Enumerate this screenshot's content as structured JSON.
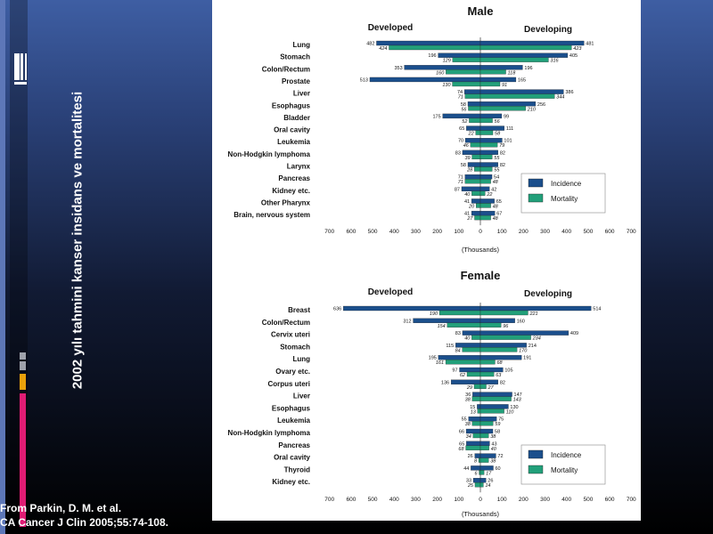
{
  "slide": {
    "vertical_title": "2002 yılı tahmini kanser insidans ve mortalitesi",
    "citation_line_1": "From Parkin, D. M. et al.",
    "citation_line_2": "CA Cancer J Clin 2005;55:74-108."
  },
  "colors": {
    "incidence": "#1b4f8c",
    "mortality": "#22a07a",
    "background_top": "#3e5ea3",
    "background_bottom": "#000000",
    "accent_magenta": "#e01c74",
    "accent_gold": "#e9a10b",
    "accent_grey": "#9fa2ab"
  },
  "chart_data": [
    {
      "type": "bar",
      "title": "Male",
      "left_label": "Developed",
      "right_label": "Developing",
      "xlabel": "(Thousands)",
      "xlim": [
        -700,
        700
      ],
      "tick_labels": [
        "700",
        "600",
        "500",
        "400",
        "300",
        "200",
        "100",
        "0",
        "100",
        "200",
        "300",
        "400",
        "500",
        "600",
        "700"
      ],
      "legend": {
        "position": "right",
        "incidence": "Incidence",
        "mortality": "Mortality"
      },
      "categories": [
        "Lung",
        "Stomach",
        "Colon/Rectum",
        "Prostate",
        "Liver",
        "Esophagus",
        "Bladder",
        "Oral cavity",
        "Leukemia",
        "Non-Hodgkin lymphoma",
        "Larynx",
        "Pancreas",
        "Kidney etc.",
        "Other Pharynx",
        "Brain, nervous system"
      ],
      "series": [
        {
          "name": "Incidence",
          "side": "Developed",
          "values": [
            482,
            196,
            353,
            513,
            74,
            58,
            175,
            65,
            70,
            83,
            58,
            71,
            87,
            41,
            41
          ]
        },
        {
          "name": "Mortality",
          "side": "Developed",
          "values": [
            424,
            129,
            160,
            130,
            71,
            56,
            52,
            22,
            46,
            39,
            28,
            71,
            40,
            20,
            27
          ]
        },
        {
          "name": "Incidence",
          "side": "Developing",
          "values": [
            481,
            405,
            196,
            165,
            386,
            256,
            99,
            111,
            101,
            82,
            82,
            54,
            42,
            65,
            67
          ]
        },
        {
          "name": "Mortality",
          "side": "Developing",
          "values": [
            423,
            316,
            118,
            91,
            344,
            210,
            56,
            58,
            79,
            55,
            55,
            48,
            22,
            48,
            48
          ]
        }
      ]
    },
    {
      "type": "bar",
      "title": "Female",
      "left_label": "Developed",
      "right_label": "Developing",
      "xlabel": "(Thousands)",
      "xlim": [
        -700,
        700
      ],
      "tick_labels": [
        "700",
        "600",
        "500",
        "400",
        "300",
        "200",
        "100",
        "0",
        "100",
        "200",
        "300",
        "400",
        "500",
        "600",
        "700"
      ],
      "legend": {
        "position": "right",
        "incidence": "Incidence",
        "mortality": "Mortality"
      },
      "categories": [
        "Breast",
        "Colon/Rectum",
        "Cervix uteri",
        "Stomach",
        "Lung",
        "Ovary etc.",
        "Corpus uteri",
        "Liver",
        "Esophagus",
        "Leukemia",
        "Non-Hodgkin lymphoma",
        "Pancreas",
        "Oral cavity",
        "Thyroid",
        "Kidney etc."
      ],
      "series": [
        {
          "name": "Incidence",
          "side": "Developed",
          "values": [
            636,
            312,
            83,
            115,
            195,
            97,
            136,
            36,
            15,
            55,
            66,
            65,
            26,
            44,
            33
          ]
        },
        {
          "name": "Mortality",
          "side": "Developed",
          "values": [
            190,
            154,
            40,
            84,
            161,
            62,
            29,
            38,
            13,
            38,
            34,
            68,
            8,
            6,
            25
          ]
        },
        {
          "name": "Incidence",
          "side": "Developing",
          "values": [
            514,
            160,
            409,
            214,
            191,
            105,
            82,
            147,
            130,
            75,
            58,
            43,
            72,
            60,
            26
          ]
        },
        {
          "name": "Mortality",
          "side": "Developing",
          "values": [
            221,
            96,
            234,
            170,
            68,
            63,
            27,
            143,
            110,
            59,
            38,
            40,
            38,
            17,
            14
          ]
        }
      ]
    }
  ]
}
